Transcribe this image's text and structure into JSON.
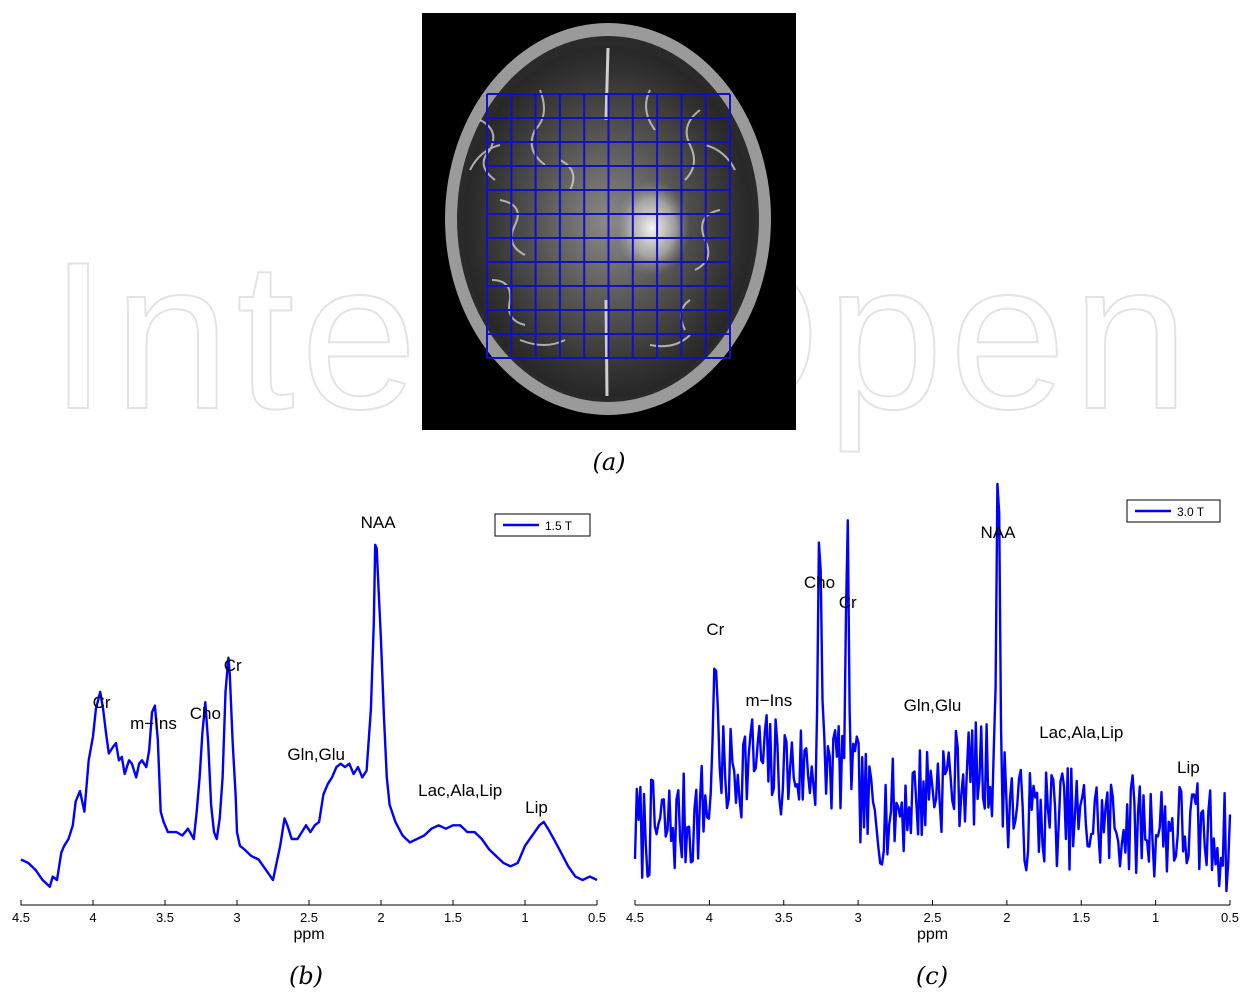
{
  "figure": {
    "watermark": "IntechOpen",
    "captions": [
      "(a)",
      "(b)",
      "(c)"
    ]
  },
  "image_a": {
    "grid_color": "#1010c8",
    "grid_rows": 11,
    "grid_cols": 10
  },
  "chart_data": [
    {
      "type": "line",
      "xlabel": "ppm",
      "ylabel": "",
      "xlim": [
        4.5,
        0.5
      ],
      "x_reversed": true,
      "xticks": [
        "4.5",
        "4",
        "3.5",
        "3",
        "2.5",
        "2",
        "1.5",
        "1",
        "0.5"
      ],
      "y_axis_visible": false,
      "legend": {
        "placement": "top-right",
        "entries": [
          "1.5 T"
        ]
      },
      "color": "#0000ff",
      "annotations": [
        {
          "text": "Cr",
          "ppm": 3.94
        },
        {
          "text": "m−Ins",
          "ppm": 3.58
        },
        {
          "text": "Cho",
          "ppm": 3.22
        },
        {
          "text": "Cr",
          "ppm": 3.03
        },
        {
          "text": "Gln,Glu",
          "ppm": 2.45
        },
        {
          "text": "NAA",
          "ppm": 2.02
        },
        {
          "text": "Lac,Ala,Lip",
          "ppm": 1.45
        },
        {
          "text": "Lip",
          "ppm": 0.92
        }
      ],
      "series": [
        {
          "name": "1.5 T",
          "x": [
            4.5,
            4.45,
            4.4,
            4.35,
            4.3,
            4.28,
            4.25,
            4.22,
            4.2,
            4.17,
            4.14,
            4.12,
            4.09,
            4.06,
            4.03,
            4.0,
            3.98,
            3.95,
            3.93,
            3.91,
            3.89,
            3.86,
            3.84,
            3.82,
            3.8,
            3.78,
            3.75,
            3.73,
            3.7,
            3.68,
            3.66,
            3.63,
            3.61,
            3.59,
            3.57,
            3.55,
            3.53,
            3.51,
            3.48,
            3.45,
            3.42,
            3.38,
            3.34,
            3.3,
            3.28,
            3.26,
            3.24,
            3.22,
            3.2,
            3.18,
            3.16,
            3.14,
            3.12,
            3.1,
            3.08,
            3.06,
            3.05,
            3.03,
            3.01,
            3.0,
            2.98,
            2.95,
            2.9,
            2.85,
            2.8,
            2.75,
            2.7,
            2.67,
            2.65,
            2.62,
            2.58,
            2.55,
            2.52,
            2.49,
            2.46,
            2.43,
            2.4,
            2.37,
            2.34,
            2.31,
            2.28,
            2.25,
            2.22,
            2.19,
            2.16,
            2.13,
            2.1,
            2.07,
            2.05,
            2.04,
            2.03,
            2.02,
            2.0,
            1.98,
            1.96,
            1.94,
            1.9,
            1.85,
            1.8,
            1.75,
            1.7,
            1.65,
            1.6,
            1.55,
            1.5,
            1.45,
            1.4,
            1.35,
            1.3,
            1.25,
            1.2,
            1.15,
            1.1,
            1.05,
            1.0,
            0.95,
            0.9,
            0.87,
            0.84,
            0.8,
            0.75,
            0.7,
            0.65,
            0.6,
            0.55,
            0.5
          ],
          "y": [
            0.06,
            0.05,
            0.03,
            0.0,
            -0.02,
            0.01,
            0.0,
            0.08,
            0.1,
            0.12,
            0.16,
            0.23,
            0.26,
            0.2,
            0.35,
            0.42,
            0.5,
            0.55,
            0.5,
            0.43,
            0.37,
            0.39,
            0.4,
            0.35,
            0.36,
            0.31,
            0.35,
            0.34,
            0.3,
            0.34,
            0.35,
            0.33,
            0.38,
            0.49,
            0.51,
            0.41,
            0.2,
            0.17,
            0.14,
            0.14,
            0.14,
            0.13,
            0.15,
            0.12,
            0.2,
            0.3,
            0.43,
            0.52,
            0.4,
            0.22,
            0.14,
            0.12,
            0.18,
            0.3,
            0.55,
            0.65,
            0.6,
            0.4,
            0.25,
            0.14,
            0.1,
            0.09,
            0.07,
            0.06,
            0.03,
            0.0,
            0.1,
            0.18,
            0.16,
            0.12,
            0.12,
            0.14,
            0.16,
            0.14,
            0.16,
            0.17,
            0.25,
            0.28,
            0.3,
            0.33,
            0.34,
            0.33,
            0.34,
            0.31,
            0.33,
            0.3,
            0.32,
            0.5,
            0.75,
            0.98,
            0.97,
            0.88,
            0.7,
            0.48,
            0.3,
            0.22,
            0.17,
            0.13,
            0.11,
            0.12,
            0.13,
            0.15,
            0.16,
            0.15,
            0.16,
            0.16,
            0.14,
            0.14,
            0.12,
            0.09,
            0.07,
            0.05,
            0.04,
            0.05,
            0.1,
            0.13,
            0.16,
            0.17,
            0.15,
            0.12,
            0.08,
            0.04,
            0.01,
            0.0,
            0.01,
            0.0
          ]
        }
      ]
    },
    {
      "type": "line",
      "xlabel": "ppm",
      "ylabel": "",
      "xlim": [
        4.5,
        0.5
      ],
      "x_reversed": true,
      "xticks": [
        "4.5",
        "4",
        "3.5",
        "3",
        "2.5",
        "2",
        "1.5",
        "1",
        "0.5"
      ],
      "y_axis_visible": false,
      "legend": {
        "placement": "top-right",
        "entries": [
          "3.0 T"
        ]
      },
      "color": "#0000ff",
      "annotations": [
        {
          "text": "Cr",
          "ppm": 3.96
        },
        {
          "text": "m−Ins",
          "ppm": 3.6
        },
        {
          "text": "Cho",
          "ppm": 3.26
        },
        {
          "text": "Cr",
          "ppm": 3.07
        },
        {
          "text": "Gln,Glu",
          "ppm": 2.5
        },
        {
          "text": "NAA",
          "ppm": 2.06
        },
        {
          "text": "Lac,Ala,Lip",
          "ppm": 1.5
        },
        {
          "text": "Lip",
          "ppm": 0.78
        }
      ],
      "series": [
        {
          "name": "3.0 T",
          "noisy": true,
          "peaks": [
            {
              "ppm": 3.96,
              "height": 0.48,
              "width": 0.01
            },
            {
              "ppm": 3.26,
              "height": 0.66,
              "width": 0.01
            },
            {
              "ppm": 3.07,
              "height": 0.56,
              "width": 0.01
            },
            {
              "ppm": 2.06,
              "height": 0.78,
              "width": 0.012
            }
          ],
          "x": [
            4.5,
            4.3,
            4.1,
            3.9,
            3.7,
            3.5,
            3.3,
            3.1,
            2.9,
            2.7,
            2.5,
            2.3,
            2.1,
            1.9,
            1.7,
            1.5,
            1.3,
            1.1,
            0.9,
            0.7,
            0.5
          ],
          "y": [
            0.13,
            0.14,
            0.16,
            0.28,
            0.33,
            0.3,
            0.3,
            0.32,
            0.17,
            0.2,
            0.26,
            0.28,
            0.3,
            0.16,
            0.18,
            0.16,
            0.15,
            0.15,
            0.14,
            0.13,
            0.1
          ]
        }
      ]
    }
  ]
}
